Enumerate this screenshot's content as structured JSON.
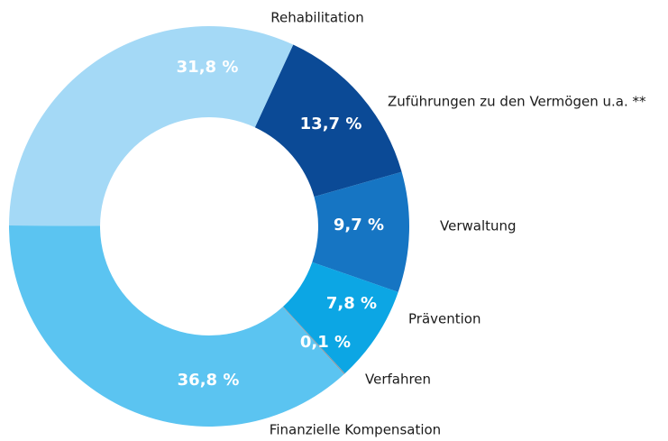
{
  "chart_data": {
    "type": "donut",
    "categories": [
      "Zuführungen zu den Vermögen u.a. **",
      "Verwaltung",
      "Prävention",
      "Verfahren",
      "Finanzielle Kompensation",
      "Rehabilitation"
    ],
    "values": [
      13.7,
      9.7,
      7.8,
      0.1,
      36.8,
      31.8
    ],
    "value_labels": [
      "13,7 %",
      "9,7 %",
      "7,8 %",
      "0,1 %",
      "36,8 %",
      "31,8 %"
    ],
    "colors": [
      "#0b4a96",
      "#1675c3",
      "#0ca6e4",
      "#8e9ba6",
      "#5bc4f1",
      "#a4d9f6"
    ]
  }
}
